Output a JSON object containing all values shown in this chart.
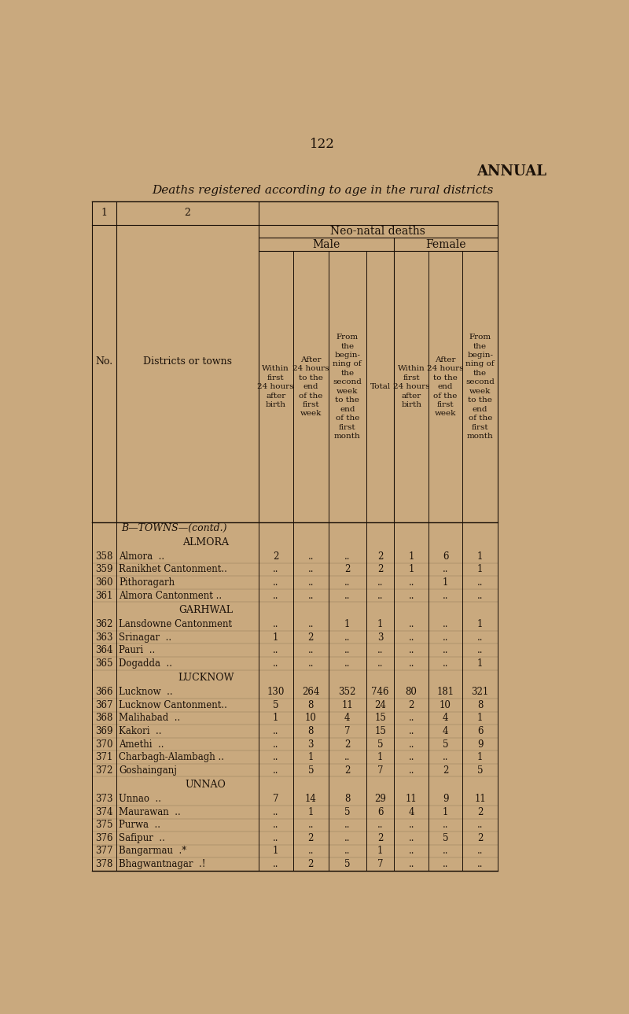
{
  "page_number": "122",
  "title_right": "ANNUAL",
  "subtitle": "Deaths registered according to age in the rural districts",
  "bg_color": "#c9a97e",
  "text_color": "#1a1008",
  "rows": [
    {
      "no": "358",
      "district": "Almora  ..",
      "m1": "2",
      "m2": "..",
      "m3": "..",
      "total": "2",
      "f1": "1",
      "f2": "6",
      "f3": "1",
      "section": "ALMORA"
    },
    {
      "no": "359",
      "district": "Ranikhet Cantonment..",
      "m1": "..",
      "m2": "..",
      "m3": "2",
      "total": "2",
      "f1": "1",
      "f2": "..",
      "f3": "1",
      "section": "ALMORA"
    },
    {
      "no": "360",
      "district": "Pithoragarh",
      "m1": "..",
      "m2": "..",
      "m3": "..",
      "total": "..",
      "f1": "..",
      "f2": "1",
      "f3": "..",
      "section": "ALMORA"
    },
    {
      "no": "361",
      "district": "Almora Cantonment ..",
      "m1": "..",
      "m2": "..",
      "m3": "..",
      "total": "..",
      "f1": "..",
      "f2": "..",
      "f3": "..",
      "section": "ALMORA"
    },
    {
      "no": "362",
      "district": "Lansdowne Cantonment",
      "m1": "..",
      "m2": "..",
      "m3": "1",
      "total": "1",
      "f1": "..",
      "f2": "..",
      "f3": "1",
      "section": "GARHWAL"
    },
    {
      "no": "363",
      "district": "Srinagar  ..",
      "m1": "1",
      "m2": "2",
      "m3": "..",
      "total": "3",
      "f1": "..",
      "f2": "..",
      "f3": "..",
      "section": "GARHWAL"
    },
    {
      "no": "364",
      "district": "Pauri  ..",
      "m1": "..",
      "m2": "..",
      "m3": "..",
      "total": "..",
      "f1": "..",
      "f2": "..",
      "f3": "..",
      "section": "GARHWAL"
    },
    {
      "no": "365",
      "district": "Dogadda  ..",
      "m1": "..",
      "m2": "..",
      "m3": "..",
      "total": "..",
      "f1": "..",
      "f2": "..",
      "f3": "1",
      "section": "GARHWAL"
    },
    {
      "no": "366",
      "district": "Lucknow  ..",
      "m1": "130",
      "m2": "264",
      "m3": "352",
      "total": "746",
      "f1": "80",
      "f2": "181",
      "f3": "321",
      "section": "LUCKNOW"
    },
    {
      "no": "367",
      "district": "Lucknow Cantonment..",
      "m1": "5",
      "m2": "8",
      "m3": "11",
      "total": "24",
      "f1": "2",
      "f2": "10",
      "f3": "8",
      "section": "LUCKNOW"
    },
    {
      "no": "368",
      "district": "Malihabad  ..",
      "m1": "1",
      "m2": "10",
      "m3": "4",
      "total": "15",
      "f1": "..",
      "f2": "4",
      "f3": "1",
      "section": "LUCKNOW"
    },
    {
      "no": "369",
      "district": "Kakori  ..",
      "m1": "..",
      "m2": "8",
      "m3": "7",
      "total": "15",
      "f1": "..",
      "f2": "4",
      "f3": "6",
      "section": "LUCKNOW"
    },
    {
      "no": "370",
      "district": "Amethi  ..",
      "m1": "..",
      "m2": "3",
      "m3": "2",
      "total": "5",
      "f1": "..",
      "f2": "5",
      "f3": "9",
      "section": "LUCKNOW"
    },
    {
      "no": "371",
      "district": "Charbagh-Alambagh ..",
      "m1": "..",
      "m2": "1",
      "m3": "..",
      "total": "1",
      "f1": "..",
      "f2": "..",
      "f3": "1",
      "section": "LUCKNOW"
    },
    {
      "no": "372",
      "district": "Goshainganj",
      "m1": "..",
      "m2": "5",
      "m3": "2",
      "total": "7",
      "f1": "..",
      "f2": "2",
      "f3": "5",
      "section": "LUCKNOW"
    },
    {
      "no": "373",
      "district": "Unnao  ..",
      "m1": "7",
      "m2": "14",
      "m3": "8",
      "total": "29",
      "f1": "11",
      "f2": "9",
      "f3": "11",
      "section": "UNNAO"
    },
    {
      "no": "374",
      "district": "Maurawan  ..",
      "m1": "..",
      "m2": "1",
      "m3": "5",
      "total": "6",
      "f1": "4",
      "f2": "1",
      "f3": "2",
      "section": "UNNAO"
    },
    {
      "no": "375",
      "district": "Purwa  ..",
      "m1": "..",
      "m2": "..",
      "m3": "..",
      "total": "..",
      "f1": "..",
      "f2": "..",
      "f3": "..",
      "section": "UNNAO"
    },
    {
      "no": "376",
      "district": "Safipur  ..",
      "m1": "..",
      "m2": "2",
      "m3": "..",
      "total": "2",
      "f1": "..",
      "f2": "5",
      "f3": "2",
      "section": "UNNAO"
    },
    {
      "no": "377",
      "district": "Bangarmau  .*",
      "m1": "1",
      "m2": "..",
      "m3": "..",
      "total": "1",
      "f1": "..",
      "f2": "..",
      "f3": "..",
      "section": "UNNAO"
    },
    {
      "no": "378",
      "district": "Bhagwantnagar  .!",
      "m1": "..",
      "m2": "2",
      "m3": "5",
      "total": "7",
      "f1": "..",
      "f2": "..",
      "f3": "..",
      "section": "UNNAO"
    }
  ]
}
